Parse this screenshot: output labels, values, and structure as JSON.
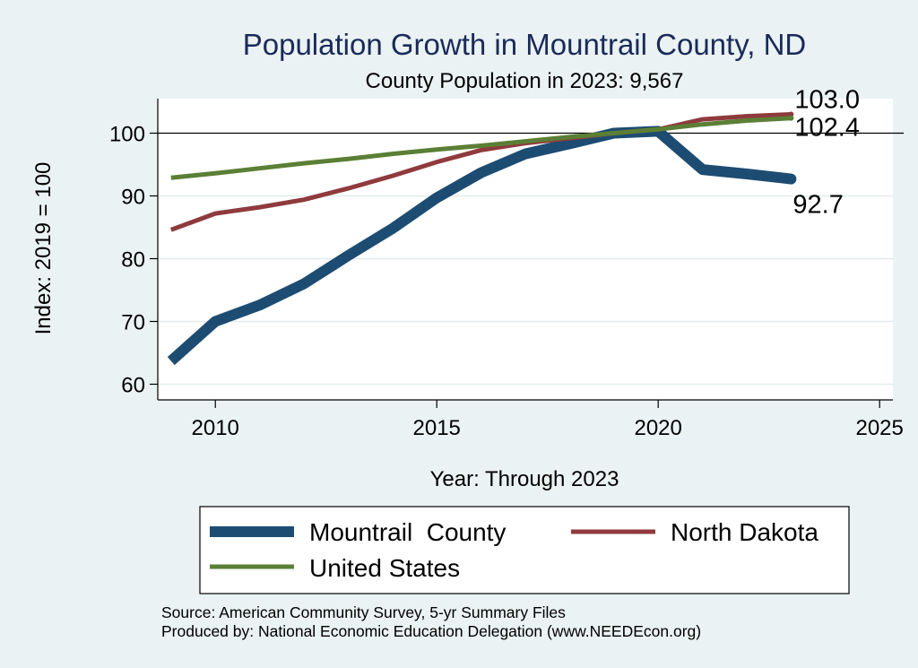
{
  "chart_data": {
    "type": "line",
    "title": "Population Growth in Mountrail County, ND",
    "subtitle": "County Population in 2023: 9,567",
    "xlabel": "Year: Through 2023",
    "ylabel": "Index: 2019 = 100",
    "xlim": [
      2008.7,
      2025.3
    ],
    "ylim": [
      57.5,
      105.5
    ],
    "xticks": [
      2010,
      2015,
      2020,
      2025
    ],
    "yticks": [
      60,
      70,
      80,
      90,
      100
    ],
    "reference_line": 100,
    "x": [
      2009,
      2010,
      2011,
      2012,
      2013,
      2014,
      2015,
      2016,
      2017,
      2018,
      2019,
      2020,
      2021,
      2022,
      2023
    ],
    "series": [
      {
        "name": "Mountrail  County",
        "color": "#1d4c72",
        "values": [
          63.7,
          70.0,
          72.6,
          76.0,
          80.5,
          84.8,
          89.7,
          93.7,
          96.7,
          98.3,
          100.0,
          100.3,
          94.2,
          93.5,
          92.7
        ],
        "end_label": "92.7"
      },
      {
        "name": "North Dakota",
        "color": "#8f3a3d",
        "values": [
          84.6,
          87.2,
          88.2,
          89.4,
          91.2,
          93.2,
          95.4,
          97.3,
          98.4,
          99.2,
          100.0,
          100.6,
          102.2,
          102.7,
          103.0
        ],
        "end_label": "103.0"
      },
      {
        "name": "United States",
        "color": "#5b7f35",
        "values": [
          92.9,
          93.6,
          94.4,
          95.2,
          95.9,
          96.7,
          97.4,
          98.0,
          98.7,
          99.4,
          100.0,
          100.6,
          101.4,
          102.0,
          102.4
        ],
        "end_label": "102.4"
      }
    ]
  },
  "notes": {
    "source": "Source: American Community Survey, 5-yr Summary Files",
    "produced_by": "Produced by: National Economic Education Delegation (www.NEEDEcon.org)"
  }
}
